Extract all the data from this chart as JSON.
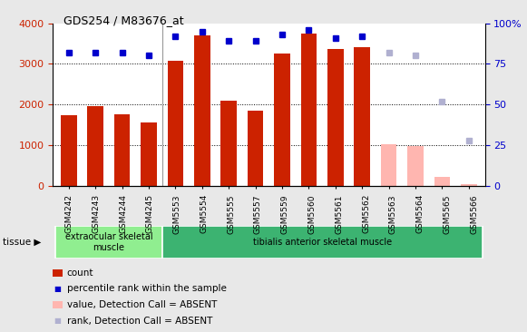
{
  "title": "GDS254 / M83676_at",
  "samples": [
    "GSM4242",
    "GSM4243",
    "GSM4244",
    "GSM4245",
    "GSM5553",
    "GSM5554",
    "GSM5555",
    "GSM5557",
    "GSM5559",
    "GSM5560",
    "GSM5561",
    "GSM5562",
    "GSM5563",
    "GSM5564",
    "GSM5565",
    "GSM5566"
  ],
  "bar_values": [
    1730,
    1960,
    1750,
    1570,
    3080,
    3700,
    2100,
    1850,
    3260,
    3740,
    3370,
    3420,
    null,
    null,
    null,
    null
  ],
  "bar_absent_values": [
    null,
    null,
    null,
    null,
    null,
    null,
    null,
    null,
    null,
    null,
    null,
    null,
    1020,
    990,
    220,
    50
  ],
  "rank_values": [
    82,
    82,
    82,
    80,
    92,
    95,
    89,
    89,
    93,
    96,
    91,
    92,
    null,
    null,
    null,
    null
  ],
  "rank_absent_values": [
    null,
    null,
    null,
    null,
    null,
    null,
    null,
    null,
    null,
    null,
    null,
    null,
    82,
    80,
    52,
    28
  ],
  "tissue_groups": [
    {
      "label": "extraocular skeletal\nmuscle",
      "start": 0,
      "end": 4,
      "color": "#90ee90"
    },
    {
      "label": "tibialis anterior skeletal muscle",
      "start": 4,
      "end": 16,
      "color": "#3cb371"
    }
  ],
  "ylim_left": [
    0,
    4000
  ],
  "ylim_right": [
    0,
    100
  ],
  "yticks_left": [
    0,
    1000,
    2000,
    3000,
    4000
  ],
  "yticks_right": [
    0,
    25,
    50,
    75,
    100
  ],
  "bar_color": "#cc2200",
  "bar_absent_color": "#ffb6b0",
  "rank_color": "#0000cc",
  "rank_absent_color": "#b0b0d0",
  "bg_color": "#e8e8e8",
  "plot_bg": "#ffffff",
  "legend_items": [
    {
      "label": "count",
      "color": "#cc2200",
      "type": "bar"
    },
    {
      "label": "percentile rank within the sample",
      "color": "#0000cc",
      "type": "square"
    },
    {
      "label": "value, Detection Call = ABSENT",
      "color": "#ffb6b0",
      "type": "bar"
    },
    {
      "label": "rank, Detection Call = ABSENT",
      "color": "#b0b0d0",
      "type": "square"
    }
  ]
}
